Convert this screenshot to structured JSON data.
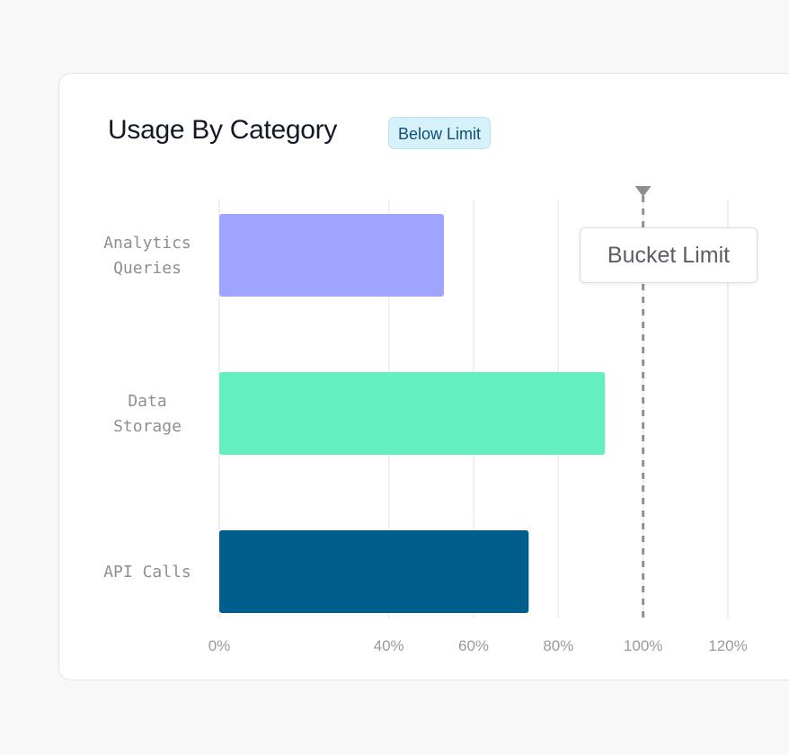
{
  "card": {
    "title": "Usage By Category",
    "badge": "Below Limit"
  },
  "chart_data": {
    "type": "bar",
    "orientation": "horizontal",
    "categories": [
      [
        "Analytics",
        "Queries"
      ],
      [
        "Data",
        "Storage"
      ],
      [
        "API Calls"
      ]
    ],
    "values": [
      53,
      91,
      73
    ],
    "bar_colors": [
      "#9ea4ff",
      "#65efc1",
      "#005e8c"
    ],
    "xlim": [
      0,
      120
    ],
    "xticks": [
      0,
      40,
      60,
      80,
      100,
      120
    ],
    "tick_format": "{v}%",
    "grid": true,
    "reference_line": {
      "value": 100,
      "label": "Bucket Limit",
      "color": "#8f8f8f"
    }
  }
}
